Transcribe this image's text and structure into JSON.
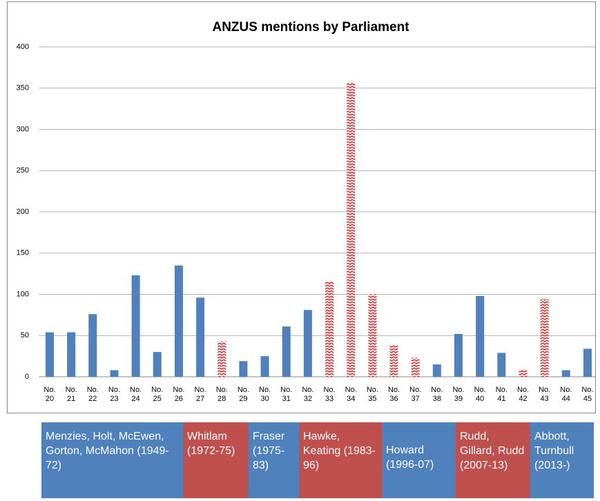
{
  "chart_data": {
    "type": "bar",
    "title": "ANZUS mentions by Parliament",
    "categories": [
      "No. 20",
      "No. 21",
      "No. 22",
      "No. 23",
      "No. 24",
      "No. 25",
      "No. 26",
      "No. 27",
      "No. 28",
      "No. 29",
      "No. 30",
      "No. 31",
      "No. 32",
      "No. 33",
      "No. 34",
      "No. 35",
      "No. 36",
      "No. 37",
      "No. 38",
      "No. 39",
      "No. 40",
      "No. 41",
      "No. 42",
      "No. 43",
      "No. 44",
      "No. 45"
    ],
    "values": [
      54,
      54,
      76,
      8,
      123,
      30,
      135,
      96,
      43,
      19,
      25,
      61,
      81,
      116,
      357,
      100,
      38,
      23,
      15,
      52,
      98,
      29,
      9,
      94,
      8,
      34
    ],
    "color": "#4f81bd",
    "bar_colors": [
      "#4f81bd",
      "#4f81bd",
      "#4f81bd",
      "#4f81bd",
      "#4f81bd",
      "#4f81bd",
      "#4f81bd",
      "#4f81bd",
      "#e03030",
      "#4f81bd",
      "#4f81bd",
      "#4f81bd",
      "#4f81bd",
      "#e03030",
      "#e03030",
      "#e03030",
      "#e03030",
      "#e03030",
      "#4f81bd",
      "#4f81bd",
      "#4f81bd",
      "#4f81bd",
      "#e03030",
      "#e03030",
      "#4f81bd",
      "#4f81bd"
    ],
    "ylim": [
      0,
      400
    ],
    "yticks": [
      0,
      50,
      100,
      150,
      200,
      250,
      300,
      350,
      400
    ],
    "grid": true
  },
  "governments": [
    {
      "label": "Menzies, Holt, McEwen, Gorton, McMahon (1949-72)",
      "color": "#4f81bd"
    },
    {
      "label": "Whitlam (1972-75)",
      "color": "#c0504d"
    },
    {
      "label": "Fraser (1975-83)",
      "color": "#4f81bd"
    },
    {
      "label": "Hawke, Keating (1983-96)",
      "color": "#c0504d"
    },
    {
      "label": "Howard (1996-07)",
      "color": "#4f81bd"
    },
    {
      "label": "Rudd, Gillard, Rudd (2007-13)",
      "color": "#c0504d"
    },
    {
      "label": "Abbott, Turnbull (2013-)",
      "color": "#4f81bd"
    }
  ]
}
